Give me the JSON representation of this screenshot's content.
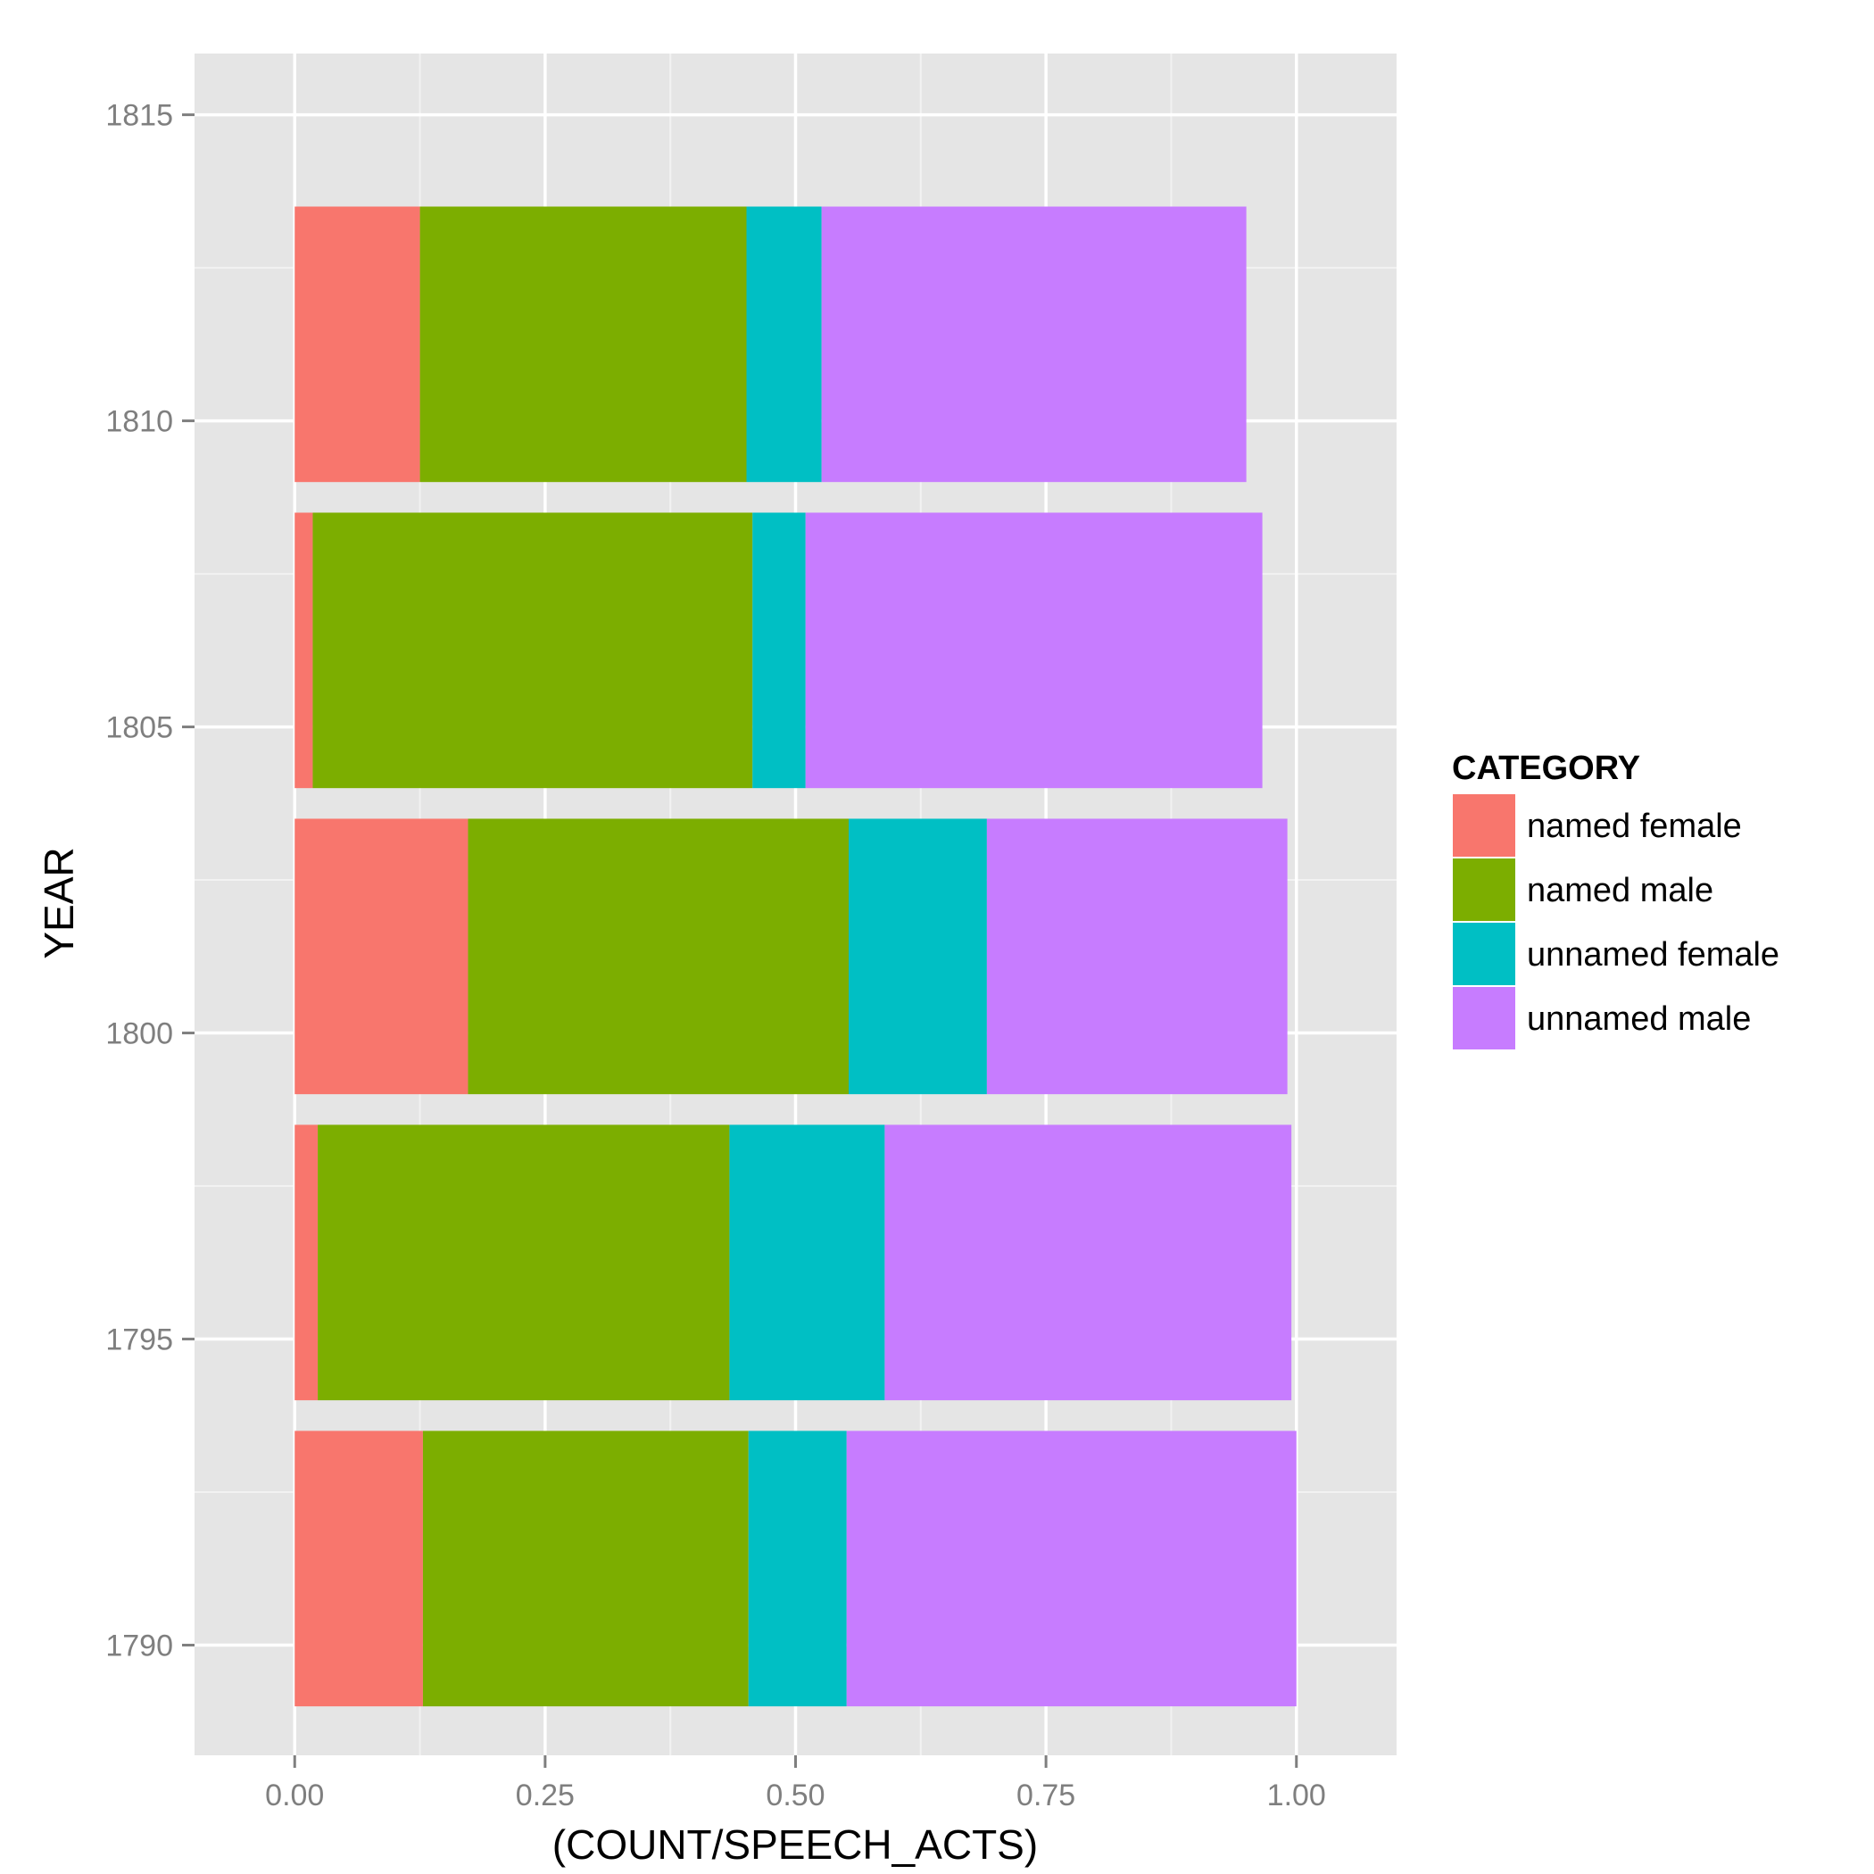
{
  "chart_data": {
    "type": "bar",
    "orientation": "horizontal",
    "stacked": true,
    "title": "",
    "xlabel": "(COUNT/SPEECH_ACTS)",
    "ylabel": "YEAR",
    "xlim": [
      -0.1,
      1.1
    ],
    "ylim": [
      1788.2,
      1816
    ],
    "x_ticks": [
      0,
      0.25,
      0.5,
      0.75,
      1
    ],
    "x_tick_labels": [
      "0.00",
      "0.25",
      "0.50",
      "0.75",
      "1.00"
    ],
    "y_ticks": [
      1790,
      1795,
      1800,
      1805,
      1810,
      1815
    ],
    "y_tick_labels": [
      "1790",
      "1795",
      "1800",
      "1805",
      "1810",
      "1815"
    ],
    "bar_height_years": 4.5,
    "grid": true,
    "legend": {
      "title": "CATEGORY",
      "position": "right"
    },
    "categories": [
      "1790",
      "1795",
      "1800",
      "1805",
      "1810"
    ],
    "bar_centers": [
      1791.25,
      1796.25,
      1801.25,
      1806.25,
      1811.25
    ],
    "series": [
      {
        "name": "named female",
        "color": "#F8766D",
        "values": [
          0.128,
          0.023,
          0.173,
          0.018,
          0.125
        ]
      },
      {
        "name": "named male",
        "color": "#7CAE00",
        "values": [
          0.325,
          0.411,
          0.38,
          0.439,
          0.326
        ]
      },
      {
        "name": "unnamed female",
        "color": "#00BFC4",
        "values": [
          0.098,
          0.155,
          0.138,
          0.053,
          0.075
        ]
      },
      {
        "name": "unnamed male",
        "color": "#C77CFF",
        "values": [
          0.449,
          0.406,
          0.3,
          0.456,
          0.424
        ]
      }
    ]
  }
}
